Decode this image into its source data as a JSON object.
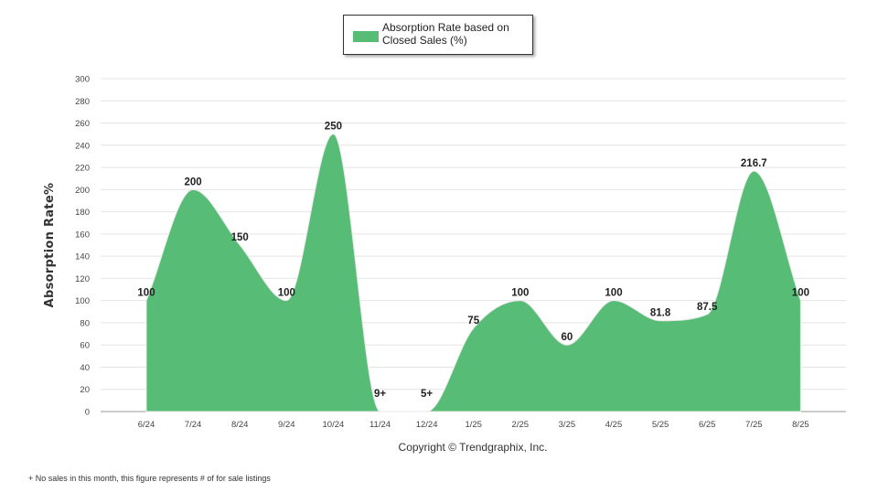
{
  "chart_data": {
    "type": "area",
    "categories": [
      "6/24",
      "7/24",
      "8/24",
      "9/24",
      "10/24",
      "11/24",
      "12/24",
      "1/25",
      "2/25",
      "3/25",
      "4/25",
      "5/25",
      "6/25",
      "7/25",
      "8/25"
    ],
    "series": [
      {
        "name": "Absorption Rate based on Closed Sales (%)",
        "values": [
          100,
          200,
          150,
          100,
          250,
          0,
          0,
          75,
          100,
          60,
          100,
          81.8,
          87.5,
          216.7,
          100
        ],
        "labels": [
          "100",
          "200",
          "150",
          "100",
          "250",
          "9+",
          "5+",
          "75",
          "100",
          "60",
          "100",
          "81.8",
          "87.5",
          "216.7",
          "100"
        ]
      }
    ],
    "ylabel": "Absorption Rate%",
    "ylim": [
      0,
      300
    ],
    "yticks": [
      0,
      20,
      40,
      60,
      80,
      100,
      120,
      140,
      160,
      180,
      200,
      220,
      240,
      260,
      280,
      300
    ],
    "grid": true,
    "legend_position": "top-center"
  },
  "colors": {
    "area": "#57bd76",
    "grid": "#e4e4e4",
    "axis": "#999999",
    "text": "#222222"
  },
  "legend": {
    "line1": "Absorption Rate based on",
    "line2": "Closed Sales (%)"
  },
  "copyright": "Copyright © Trendgraphix, Inc.",
  "footnote": "+ No sales in this month, this figure represents # of for sale listings"
}
